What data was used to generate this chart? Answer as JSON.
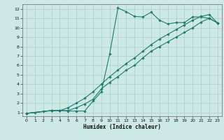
{
  "xlabel": "Humidex (Indice chaleur)",
  "bg_color": "#cce9e5",
  "grid_color": "#aacfcb",
  "line_color": "#1f7a6e",
  "xlim": [
    -0.5,
    23.5
  ],
  "ylim": [
    0.6,
    12.5
  ],
  "xticks": [
    0,
    1,
    2,
    3,
    4,
    5,
    6,
    7,
    8,
    9,
    10,
    11,
    12,
    13,
    14,
    15,
    16,
    17,
    18,
    19,
    20,
    21,
    22,
    23
  ],
  "yticks": [
    1,
    2,
    3,
    4,
    5,
    6,
    7,
    8,
    9,
    10,
    11,
    12
  ],
  "line1_x": [
    0,
    1,
    2,
    3,
    4,
    5,
    6,
    7,
    8,
    9,
    10,
    11,
    12,
    13,
    14,
    15,
    16,
    17,
    18,
    19,
    20,
    21,
    22,
    23
  ],
  "line1_y": [
    0.9,
    1.0,
    1.1,
    1.2,
    1.2,
    1.15,
    1.15,
    1.15,
    2.2,
    3.2,
    7.2,
    12.1,
    11.7,
    11.2,
    11.15,
    11.65,
    10.8,
    10.4,
    10.55,
    10.55,
    11.15,
    11.15,
    11.0,
    10.5
  ],
  "line2_x": [
    0,
    3,
    4,
    5,
    6,
    7,
    8,
    9,
    10,
    11,
    12,
    13,
    14,
    15,
    16,
    17,
    18,
    19,
    20,
    21,
    22,
    23
  ],
  "line2_y": [
    0.9,
    1.2,
    1.2,
    1.2,
    1.5,
    1.9,
    2.4,
    3.5,
    4.2,
    4.8,
    5.5,
    6.0,
    6.8,
    7.5,
    8.0,
    8.5,
    9.0,
    9.5,
    10.0,
    10.6,
    11.0,
    10.5
  ],
  "line3_x": [
    0,
    3,
    4,
    5,
    6,
    7,
    8,
    9,
    10,
    11,
    12,
    13,
    14,
    15,
    16,
    17,
    18,
    19,
    20,
    21,
    22,
    23
  ],
  "line3_y": [
    0.9,
    1.2,
    1.2,
    1.5,
    2.0,
    2.5,
    3.2,
    4.0,
    4.8,
    5.5,
    6.2,
    6.8,
    7.5,
    8.2,
    8.8,
    9.3,
    9.8,
    10.3,
    10.8,
    11.2,
    11.4,
    10.5
  ]
}
